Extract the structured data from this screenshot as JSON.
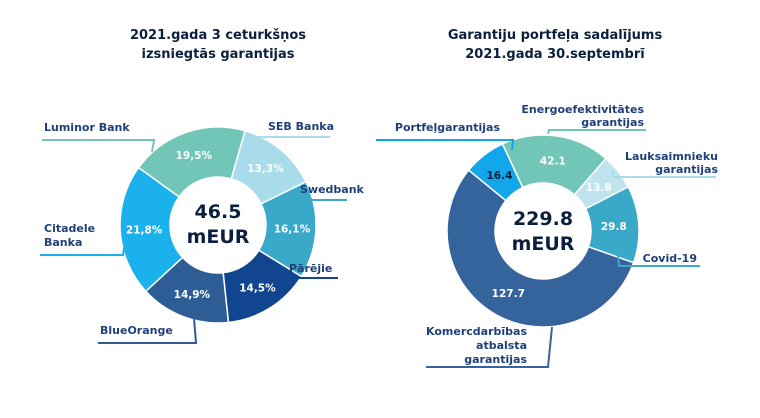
{
  "chart_data": [
    {
      "type": "donut",
      "title": [
        "2021.gada 3 ceturkšņos",
        "izsniegtās garantijas"
      ],
      "center_value": "46.5",
      "center_unit": "mEUR",
      "slices": [
        {
          "label": "SEB Banka",
          "display": "13,3%",
          "value": 13.3,
          "color": "#a9dcea",
          "text_color": "#ffffff"
        },
        {
          "label": "Swedbank",
          "display": "16,1%",
          "value": 16.1,
          "color": "#3aa9c9",
          "text_color": "#ffffff"
        },
        {
          "label": "Pārējie",
          "display": "14,5%",
          "value": 14.5,
          "color": "#12458f",
          "text_color": "#ffffff"
        },
        {
          "label": "BlueOrange",
          "display": "14,9%",
          "value": 14.9,
          "color": "#2d5d94",
          "text_color": "#ffffff"
        },
        {
          "label": "Citadele Banka",
          "display": "21,8%",
          "value": 21.8,
          "color": "#1bb1ec",
          "text_color": "#ffffff"
        },
        {
          "label": "Luminor Bank",
          "display": "19,5%",
          "value": 19.5,
          "color": "#72c6b8",
          "text_color": "#ffffff"
        }
      ]
    },
    {
      "type": "donut",
      "title": [
        "Garantiju portfeļa sadalījums",
        "2021.gada 30.septembrī"
      ],
      "center_value": "229.8",
      "center_unit": "mEUR",
      "slices": [
        {
          "label": "Energoefektivitātes garantijas",
          "display": "42.1",
          "value": 42.1,
          "color": "#72c6b8",
          "text_color": "#ffffff"
        },
        {
          "label": "Lauksaimnieku garantijas",
          "display": "13.8",
          "value": 13.8,
          "color": "#bfe4ee",
          "text_color": "#ffffff"
        },
        {
          "label": "Covid-19",
          "display": "29.8",
          "value": 29.8,
          "color": "#3aa9c9",
          "text_color": "#ffffff"
        },
        {
          "label": "Komercdarbības atbalsta garantijas",
          "display": "127.7",
          "value": 127.7,
          "color": "#35639b",
          "text_color": "#ffffff"
        },
        {
          "label": "Portfeļgarantijas",
          "display": "16.4",
          "value": 16.4,
          "color": "#12a6ea",
          "text_color": "#0b1f3f"
        }
      ]
    }
  ]
}
